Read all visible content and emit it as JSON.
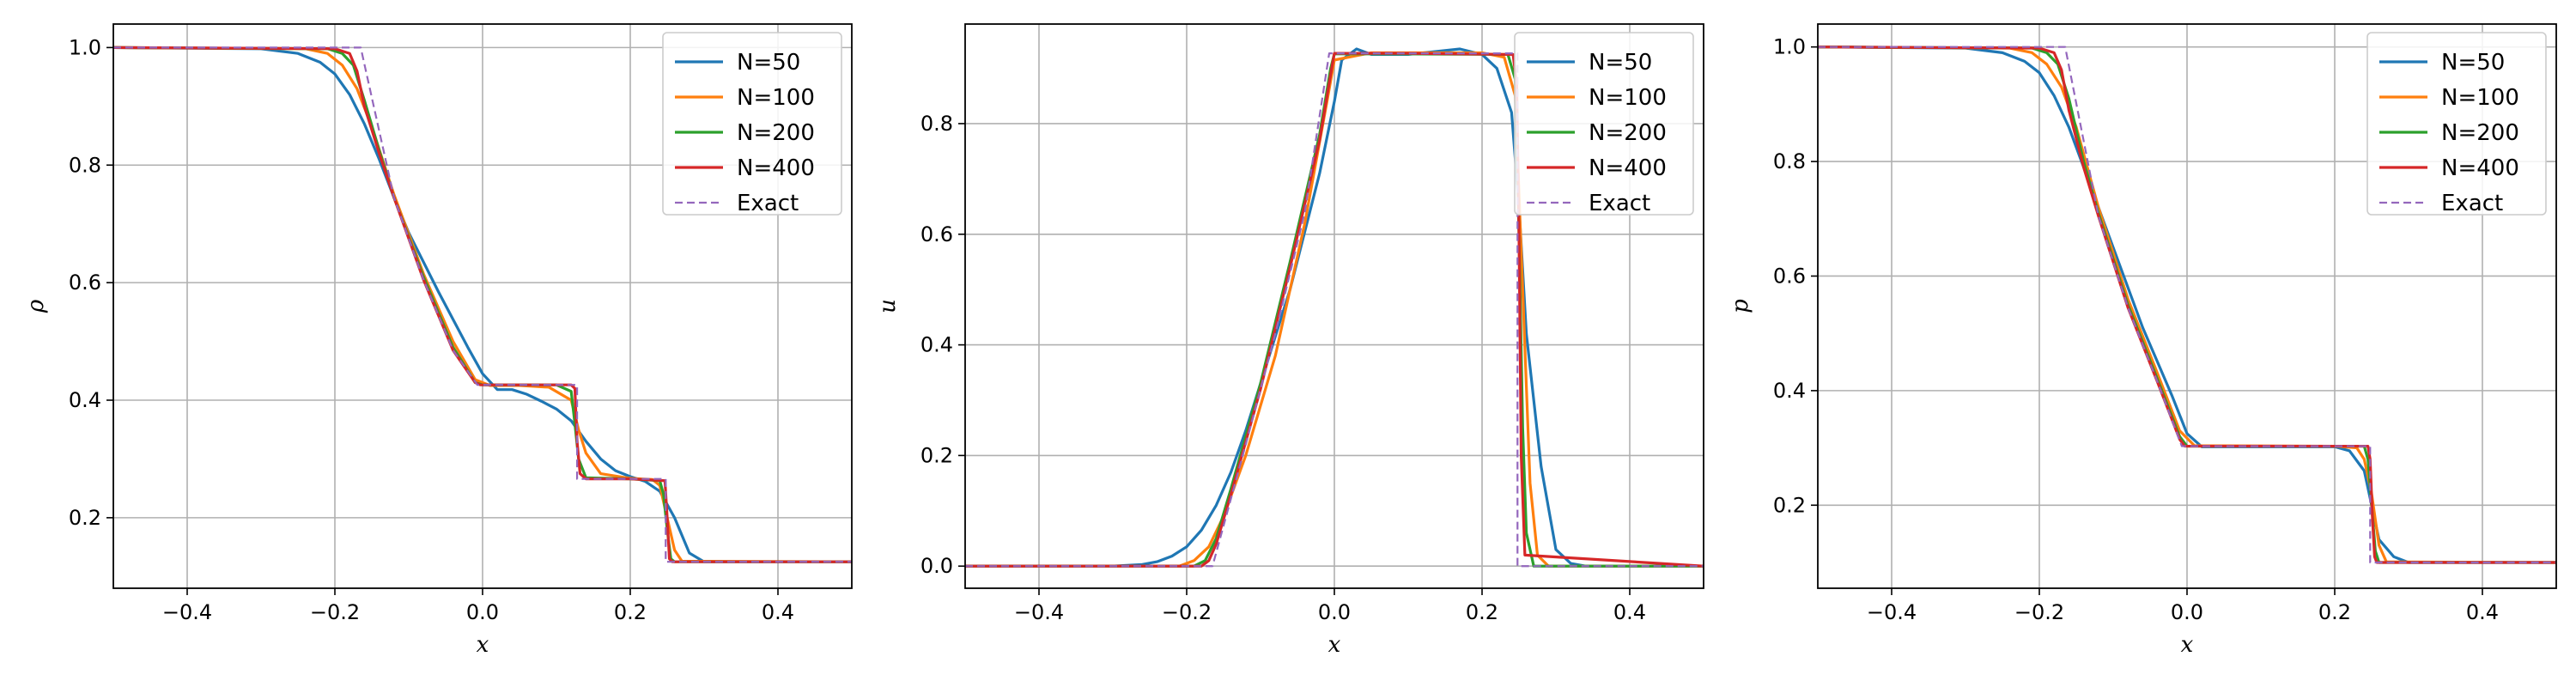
{
  "chart_data": [
    {
      "type": "line",
      "ylabel": "ρ",
      "xlabel": "x",
      "xlim": [
        -0.5,
        0.5
      ],
      "ylim": [
        0.08,
        1.04
      ],
      "xticks": [
        -0.4,
        -0.2,
        0.0,
        0.2,
        0.4
      ],
      "xtick_labels": [
        "−0.4",
        "−0.2",
        "0.0",
        "0.2",
        "0.4"
      ],
      "yticks": [
        0.2,
        0.4,
        0.6,
        0.8,
        1.0
      ],
      "ytick_labels": [
        "0.2",
        "0.4",
        "0.6",
        "0.8",
        "1.0"
      ],
      "grid": true,
      "legend": "top-right",
      "series": [
        {
          "name": "N=50",
          "color": "#1f77b4",
          "style": "solid",
          "x": [
            -0.5,
            -0.3,
            -0.25,
            -0.22,
            -0.2,
            -0.18,
            -0.16,
            -0.14,
            -0.12,
            -0.1,
            -0.06,
            -0.02,
            0.0,
            0.02,
            0.04,
            0.06,
            0.08,
            0.1,
            0.12,
            0.14,
            0.16,
            0.18,
            0.2,
            0.22,
            0.24,
            0.26,
            0.28,
            0.3,
            0.5
          ],
          "y": [
            1.0,
            0.998,
            0.99,
            0.975,
            0.955,
            0.92,
            0.87,
            0.81,
            0.745,
            0.685,
            0.585,
            0.49,
            0.445,
            0.418,
            0.418,
            0.41,
            0.398,
            0.385,
            0.365,
            0.33,
            0.3,
            0.28,
            0.27,
            0.262,
            0.245,
            0.2,
            0.14,
            0.125,
            0.125
          ]
        },
        {
          "name": "N=100",
          "color": "#ff7f0e",
          "style": "solid",
          "x": [
            -0.5,
            -0.24,
            -0.21,
            -0.19,
            -0.17,
            -0.15,
            -0.12,
            -0.08,
            -0.04,
            -0.01,
            0.01,
            0.05,
            0.09,
            0.12,
            0.13,
            0.14,
            0.16,
            0.2,
            0.23,
            0.24,
            0.25,
            0.26,
            0.27,
            0.5
          ],
          "y": [
            1.0,
            0.998,
            0.99,
            0.97,
            0.93,
            0.865,
            0.75,
            0.615,
            0.5,
            0.435,
            0.425,
            0.425,
            0.422,
            0.4,
            0.35,
            0.31,
            0.275,
            0.267,
            0.265,
            0.255,
            0.2,
            0.145,
            0.126,
            0.125
          ]
        },
        {
          "name": "N=200",
          "color": "#2ca02c",
          "style": "solid",
          "x": [
            -0.5,
            -0.21,
            -0.19,
            -0.175,
            -0.16,
            -0.14,
            -0.12,
            -0.08,
            -0.04,
            -0.01,
            0.0,
            0.05,
            0.1,
            0.12,
            0.125,
            0.13,
            0.14,
            0.2,
            0.24,
            0.245,
            0.25,
            0.255,
            0.26,
            0.5
          ],
          "y": [
            1.0,
            0.998,
            0.99,
            0.97,
            0.91,
            0.825,
            0.745,
            0.61,
            0.49,
            0.43,
            0.426,
            0.426,
            0.426,
            0.415,
            0.36,
            0.3,
            0.268,
            0.266,
            0.263,
            0.24,
            0.18,
            0.13,
            0.125,
            0.125
          ]
        },
        {
          "name": "N=400",
          "color": "#d62728",
          "style": "solid",
          "x": [
            -0.5,
            -0.2,
            -0.18,
            -0.17,
            -0.16,
            -0.14,
            -0.12,
            -0.08,
            -0.04,
            -0.01,
            -0.003,
            0.05,
            0.12,
            0.125,
            0.128,
            0.132,
            0.14,
            0.2,
            0.247,
            0.25,
            0.253,
            0.257,
            0.5
          ],
          "y": [
            1.0,
            0.998,
            0.99,
            0.96,
            0.9,
            0.82,
            0.745,
            0.605,
            0.485,
            0.43,
            0.426,
            0.426,
            0.426,
            0.42,
            0.33,
            0.275,
            0.266,
            0.266,
            0.263,
            0.2,
            0.13,
            0.125,
            0.125
          ]
        },
        {
          "name": "Exact",
          "color": "#9467bd",
          "style": "dashed",
          "x": [
            -0.5,
            -0.165,
            -0.12,
            -0.08,
            -0.04,
            -0.007,
            0.128,
            0.128,
            0.248,
            0.248,
            0.5
          ],
          "y": [
            1.0,
            1.0,
            0.745,
            0.605,
            0.485,
            0.426,
            0.426,
            0.266,
            0.266,
            0.125,
            0.125
          ]
        }
      ]
    },
    {
      "type": "line",
      "ylabel": "u",
      "xlabel": "x",
      "xlim": [
        -0.5,
        0.5
      ],
      "ylim": [
        -0.04,
        0.98
      ],
      "xticks": [
        -0.4,
        -0.2,
        0.0,
        0.2,
        0.4
      ],
      "xtick_labels": [
        "−0.4",
        "−0.2",
        "0.0",
        "0.2",
        "0.4"
      ],
      "yticks": [
        0.0,
        0.2,
        0.4,
        0.6,
        0.8
      ],
      "ytick_labels": [
        "0.0",
        "0.2",
        "0.4",
        "0.6",
        "0.8"
      ],
      "grid": true,
      "legend": "top-right",
      "series": [
        {
          "name": "N=50",
          "color": "#1f77b4",
          "style": "solid",
          "x": [
            -0.5,
            -0.3,
            -0.26,
            -0.24,
            -0.22,
            -0.2,
            -0.18,
            -0.16,
            -0.14,
            -0.12,
            -0.1,
            -0.06,
            -0.02,
            0.0,
            0.01,
            0.03,
            0.05,
            0.1,
            0.17,
            0.2,
            0.22,
            0.24,
            0.25,
            0.26,
            0.28,
            0.3,
            0.32,
            0.34,
            0.5
          ],
          "y": [
            0.0,
            0.0,
            0.003,
            0.008,
            0.018,
            0.035,
            0.065,
            0.11,
            0.17,
            0.245,
            0.33,
            0.5,
            0.71,
            0.84,
            0.915,
            0.935,
            0.925,
            0.925,
            0.935,
            0.925,
            0.9,
            0.82,
            0.65,
            0.42,
            0.18,
            0.03,
            0.005,
            0.0,
            0.0
          ]
        },
        {
          "name": "N=100",
          "color": "#ff7f0e",
          "style": "solid",
          "x": [
            -0.5,
            -0.21,
            -0.19,
            -0.17,
            -0.15,
            -0.12,
            -0.08,
            -0.04,
            -0.01,
            0.0,
            0.05,
            0.2,
            0.23,
            0.245,
            0.255,
            0.265,
            0.275,
            0.29,
            0.5
          ],
          "y": [
            0.0,
            0.0,
            0.01,
            0.035,
            0.09,
            0.2,
            0.38,
            0.62,
            0.84,
            0.915,
            0.928,
            0.928,
            0.92,
            0.85,
            0.5,
            0.15,
            0.02,
            0.0,
            0.0
          ]
        },
        {
          "name": "N=200",
          "color": "#2ca02c",
          "style": "solid",
          "x": [
            -0.5,
            -0.19,
            -0.175,
            -0.16,
            -0.14,
            -0.1,
            -0.06,
            -0.02,
            -0.005,
            0.0,
            0.1,
            0.235,
            0.245,
            0.25,
            0.255,
            0.26,
            0.27,
            0.5
          ],
          "y": [
            0.0,
            0.0,
            0.01,
            0.05,
            0.14,
            0.33,
            0.55,
            0.78,
            0.9,
            0.926,
            0.926,
            0.925,
            0.88,
            0.6,
            0.25,
            0.06,
            0.0,
            0.0
          ]
        },
        {
          "name": "N=400",
          "color": "#d62728",
          "style": "solid",
          "x": [
            -0.5,
            -0.18,
            -0.17,
            -0.16,
            -0.14,
            -0.1,
            -0.06,
            -0.02,
            -0.003,
            0.0,
            0.1,
            0.242,
            0.247,
            0.25,
            0.253,
            0.258,
            0.5
          ],
          "y": [
            0.0,
            0.0,
            0.01,
            0.04,
            0.13,
            0.32,
            0.54,
            0.77,
            0.905,
            0.927,
            0.927,
            0.925,
            0.87,
            0.6,
            0.2,
            0.02,
            0.0
          ]
        },
        {
          "name": "Exact",
          "color": "#9467bd",
          "style": "dashed",
          "x": [
            -0.5,
            -0.165,
            -0.12,
            -0.08,
            -0.04,
            -0.007,
            0.248,
            0.248,
            0.5
          ],
          "y": [
            0.0,
            0.0,
            0.22,
            0.42,
            0.64,
            0.927,
            0.927,
            0.0,
            0.0
          ]
        }
      ]
    },
    {
      "type": "line",
      "ylabel": "p",
      "xlabel": "x",
      "xlim": [
        -0.5,
        0.5
      ],
      "ylim": [
        0.055,
        1.04
      ],
      "xticks": [
        -0.4,
        -0.2,
        0.0,
        0.2,
        0.4
      ],
      "xtick_labels": [
        "−0.4",
        "−0.2",
        "0.0",
        "0.2",
        "0.4"
      ],
      "yticks": [
        0.2,
        0.4,
        0.6,
        0.8,
        1.0
      ],
      "ytick_labels": [
        "0.2",
        "0.4",
        "0.6",
        "0.8",
        "1.0"
      ],
      "grid": true,
      "legend": "top-right",
      "series": [
        {
          "name": "N=50",
          "color": "#1f77b4",
          "style": "solid",
          "x": [
            -0.5,
            -0.3,
            -0.25,
            -0.22,
            -0.2,
            -0.18,
            -0.16,
            -0.14,
            -0.12,
            -0.1,
            -0.06,
            -0.02,
            0.0,
            0.02,
            0.04,
            0.1,
            0.2,
            0.22,
            0.24,
            0.25,
            0.26,
            0.28,
            0.3,
            0.5
          ],
          "y": [
            1.0,
            0.998,
            0.99,
            0.975,
            0.955,
            0.915,
            0.86,
            0.79,
            0.72,
            0.65,
            0.51,
            0.39,
            0.325,
            0.302,
            0.302,
            0.302,
            0.302,
            0.295,
            0.26,
            0.2,
            0.14,
            0.11,
            0.1,
            0.1
          ]
        },
        {
          "name": "N=100",
          "color": "#ff7f0e",
          "style": "solid",
          "x": [
            -0.5,
            -0.24,
            -0.21,
            -0.19,
            -0.17,
            -0.15,
            -0.12,
            -0.08,
            -0.04,
            -0.01,
            0.01,
            0.2,
            0.23,
            0.24,
            0.25,
            0.26,
            0.27,
            0.5
          ],
          "y": [
            1.0,
            0.998,
            0.99,
            0.97,
            0.93,
            0.86,
            0.72,
            0.56,
            0.43,
            0.33,
            0.304,
            0.303,
            0.3,
            0.28,
            0.22,
            0.13,
            0.101,
            0.1
          ]
        },
        {
          "name": "N=200",
          "color": "#2ca02c",
          "style": "solid",
          "x": [
            -0.5,
            -0.21,
            -0.19,
            -0.175,
            -0.16,
            -0.14,
            -0.12,
            -0.08,
            -0.04,
            -0.01,
            0.0,
            0.24,
            0.245,
            0.25,
            0.255,
            0.26,
            0.5
          ],
          "y": [
            1.0,
            0.998,
            0.99,
            0.97,
            0.91,
            0.8,
            0.71,
            0.55,
            0.42,
            0.32,
            0.303,
            0.303,
            0.28,
            0.2,
            0.12,
            0.1,
            0.1
          ]
        },
        {
          "name": "N=400",
          "color": "#d62728",
          "style": "solid",
          "x": [
            -0.5,
            -0.2,
            -0.18,
            -0.17,
            -0.16,
            -0.14,
            -0.12,
            -0.08,
            -0.04,
            -0.01,
            -0.003,
            0.245,
            0.248,
            0.251,
            0.254,
            0.257,
            0.5
          ],
          "y": [
            1.0,
            0.998,
            0.99,
            0.96,
            0.89,
            0.79,
            0.705,
            0.545,
            0.415,
            0.315,
            0.303,
            0.303,
            0.28,
            0.18,
            0.11,
            0.1,
            0.1
          ]
        },
        {
          "name": "Exact",
          "color": "#9467bd",
          "style": "dashed",
          "x": [
            -0.5,
            -0.165,
            -0.12,
            -0.08,
            -0.04,
            -0.007,
            0.248,
            0.248,
            0.5
          ],
          "y": [
            1.0,
            1.0,
            0.705,
            0.545,
            0.415,
            0.303,
            0.303,
            0.1,
            0.1
          ]
        }
      ]
    }
  ]
}
